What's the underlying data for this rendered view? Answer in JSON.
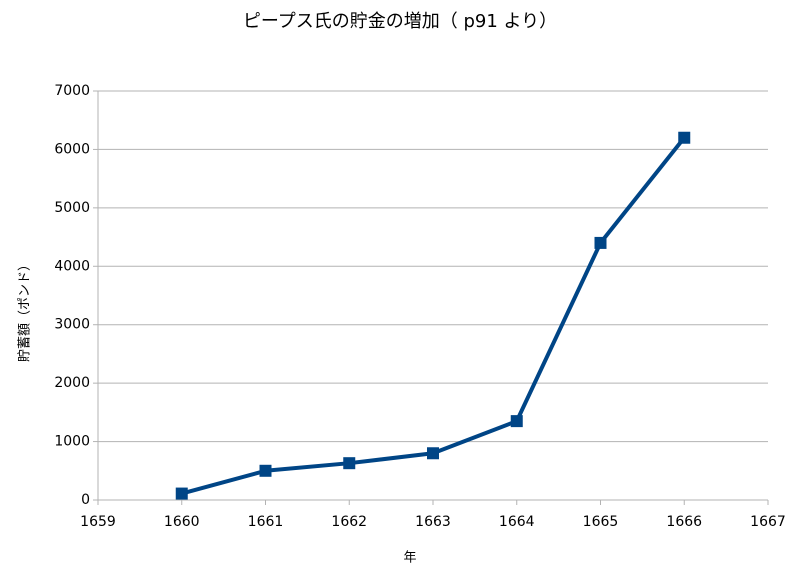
{
  "chart_data": {
    "type": "line",
    "title": "ピープス氏の貯金の増加（ p91 より）",
    "x_label": "年",
    "y_label": "貯蓄額（ポンド）",
    "x": [
      1660,
      1661,
      1662,
      1663,
      1664,
      1665,
      1666
    ],
    "series": [
      {
        "name": "貯蓄額",
        "color": "#004586",
        "values": [
          110,
          500,
          630,
          800,
          1350,
          4400,
          6200
        ]
      }
    ],
    "xlim": [
      1659,
      1667
    ],
    "xticks": [
      1659,
      1660,
      1661,
      1662,
      1663,
      1664,
      1665,
      1666,
      1667
    ],
    "ylim": [
      0,
      7000
    ],
    "yticks": [
      0,
      1000,
      2000,
      3000,
      4000,
      5000,
      6000,
      7000
    ],
    "grid": true
  }
}
